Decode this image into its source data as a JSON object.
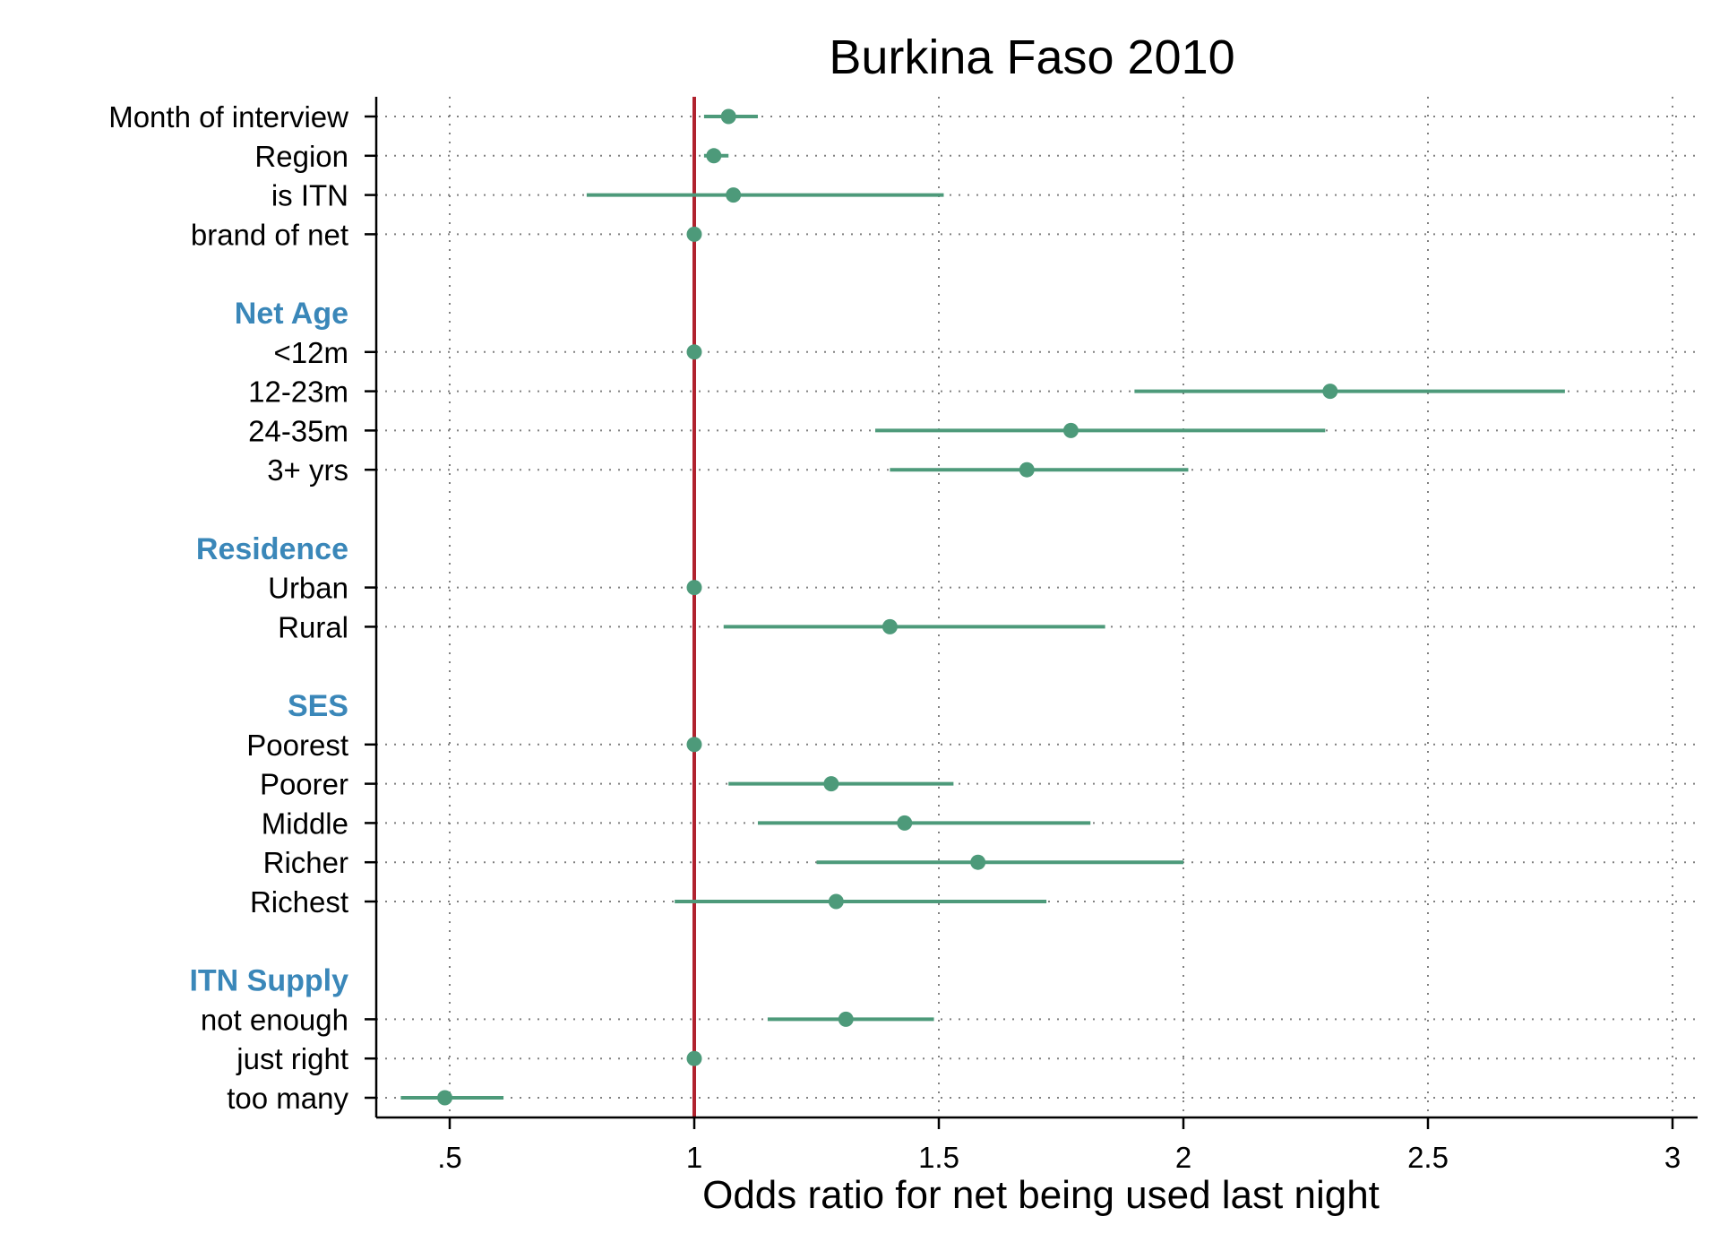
{
  "chart_data": {
    "type": "forest",
    "title": "Burkina Faso 2010",
    "xlabel": "Odds ratio for net being used last night",
    "xlim": [
      0.35,
      3.05
    ],
    "xticks": [
      {
        "value": 0.5,
        "label": ".5"
      },
      {
        "value": 1,
        "label": "1"
      },
      {
        "value": 1.5,
        "label": "1.5"
      },
      {
        "value": 2,
        "label": "2"
      },
      {
        "value": 2.5,
        "label": "2.5"
      },
      {
        "value": 3,
        "label": "3"
      }
    ],
    "reference_line": 1,
    "grid": true,
    "colors": {
      "marker": "#4d9a7a",
      "reference": "#b0222e",
      "group_heading": "#3a87b9",
      "grid": "#808080"
    },
    "rows": [
      {
        "kind": "item",
        "label": "Month of interview",
        "or": 1.07,
        "lo": 1.02,
        "hi": 1.13
      },
      {
        "kind": "item",
        "label": "Region",
        "or": 1.04,
        "lo": 1.02,
        "hi": 1.07
      },
      {
        "kind": "item",
        "label": "is ITN",
        "or": 1.08,
        "lo": 0.78,
        "hi": 1.51
      },
      {
        "kind": "item",
        "label": "brand of net",
        "or": 1.0,
        "lo": null,
        "hi": null
      },
      {
        "kind": "spacer"
      },
      {
        "kind": "group",
        "label": "Net Age"
      },
      {
        "kind": "item",
        "label": "<12m",
        "or": 1.0,
        "lo": null,
        "hi": null
      },
      {
        "kind": "item",
        "label": "12-23m",
        "or": 2.3,
        "lo": 1.9,
        "hi": 2.78
      },
      {
        "kind": "item",
        "label": "24-35m",
        "or": 1.77,
        "lo": 1.37,
        "hi": 2.29
      },
      {
        "kind": "item",
        "label": "3+ yrs",
        "or": 1.68,
        "lo": 1.4,
        "hi": 2.01
      },
      {
        "kind": "spacer"
      },
      {
        "kind": "group",
        "label": "Residence"
      },
      {
        "kind": "item",
        "label": "Urban",
        "or": 1.0,
        "lo": null,
        "hi": null
      },
      {
        "kind": "item",
        "label": "Rural",
        "or": 1.4,
        "lo": 1.06,
        "hi": 1.84
      },
      {
        "kind": "spacer"
      },
      {
        "kind": "group",
        "label": "SES"
      },
      {
        "kind": "item",
        "label": "Poorest",
        "or": 1.0,
        "lo": null,
        "hi": null
      },
      {
        "kind": "item",
        "label": "Poorer",
        "or": 1.28,
        "lo": 1.07,
        "hi": 1.53
      },
      {
        "kind": "item",
        "label": "Middle",
        "or": 1.43,
        "lo": 1.13,
        "hi": 1.81
      },
      {
        "kind": "item",
        "label": "Richer",
        "or": 1.58,
        "lo": 1.25,
        "hi": 2.0
      },
      {
        "kind": "item",
        "label": "Richest",
        "or": 1.29,
        "lo": 0.96,
        "hi": 1.72
      },
      {
        "kind": "spacer"
      },
      {
        "kind": "group",
        "label": "ITN Supply"
      },
      {
        "kind": "item",
        "label": "not enough",
        "or": 1.31,
        "lo": 1.15,
        "hi": 1.49
      },
      {
        "kind": "item",
        "label": "just right",
        "or": 1.0,
        "lo": null,
        "hi": null
      },
      {
        "kind": "item",
        "label": "too many",
        "or": 0.49,
        "lo": 0.4,
        "hi": 0.61
      }
    ]
  }
}
